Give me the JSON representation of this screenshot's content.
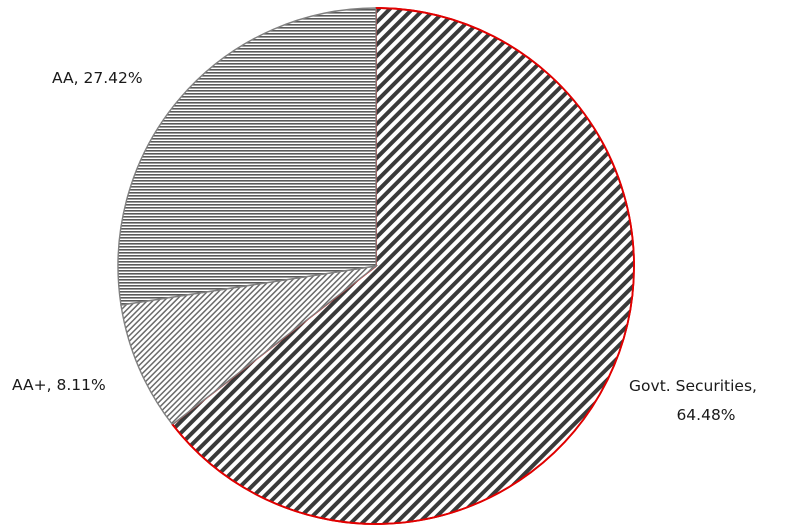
{
  "chart_data": {
    "type": "pie",
    "title": "",
    "slices": [
      {
        "label": "Govt. Securities",
        "value": 64.48,
        "label_text": "Govt. Securities,",
        "value_text": "64.48%",
        "pattern": "diagonal-hatch-dark",
        "border_color": "#e00000"
      },
      {
        "label": "AA+",
        "value": 8.11,
        "label_text": "AA+, 8.11%",
        "pattern": "diagonal-hatch-light",
        "border_color": "#808080"
      },
      {
        "label": "AA",
        "value": 27.42,
        "label_text": "AA, 27.42%",
        "pattern": "horizontal-lines",
        "border_color": "#808080"
      }
    ],
    "legend": "none",
    "colors": {
      "dark_hatch": "#3a3a3a",
      "light_hatch": "#6a6a6a",
      "horizontal_hatch": "#5a5a5a",
      "background": "#ffffff"
    }
  }
}
